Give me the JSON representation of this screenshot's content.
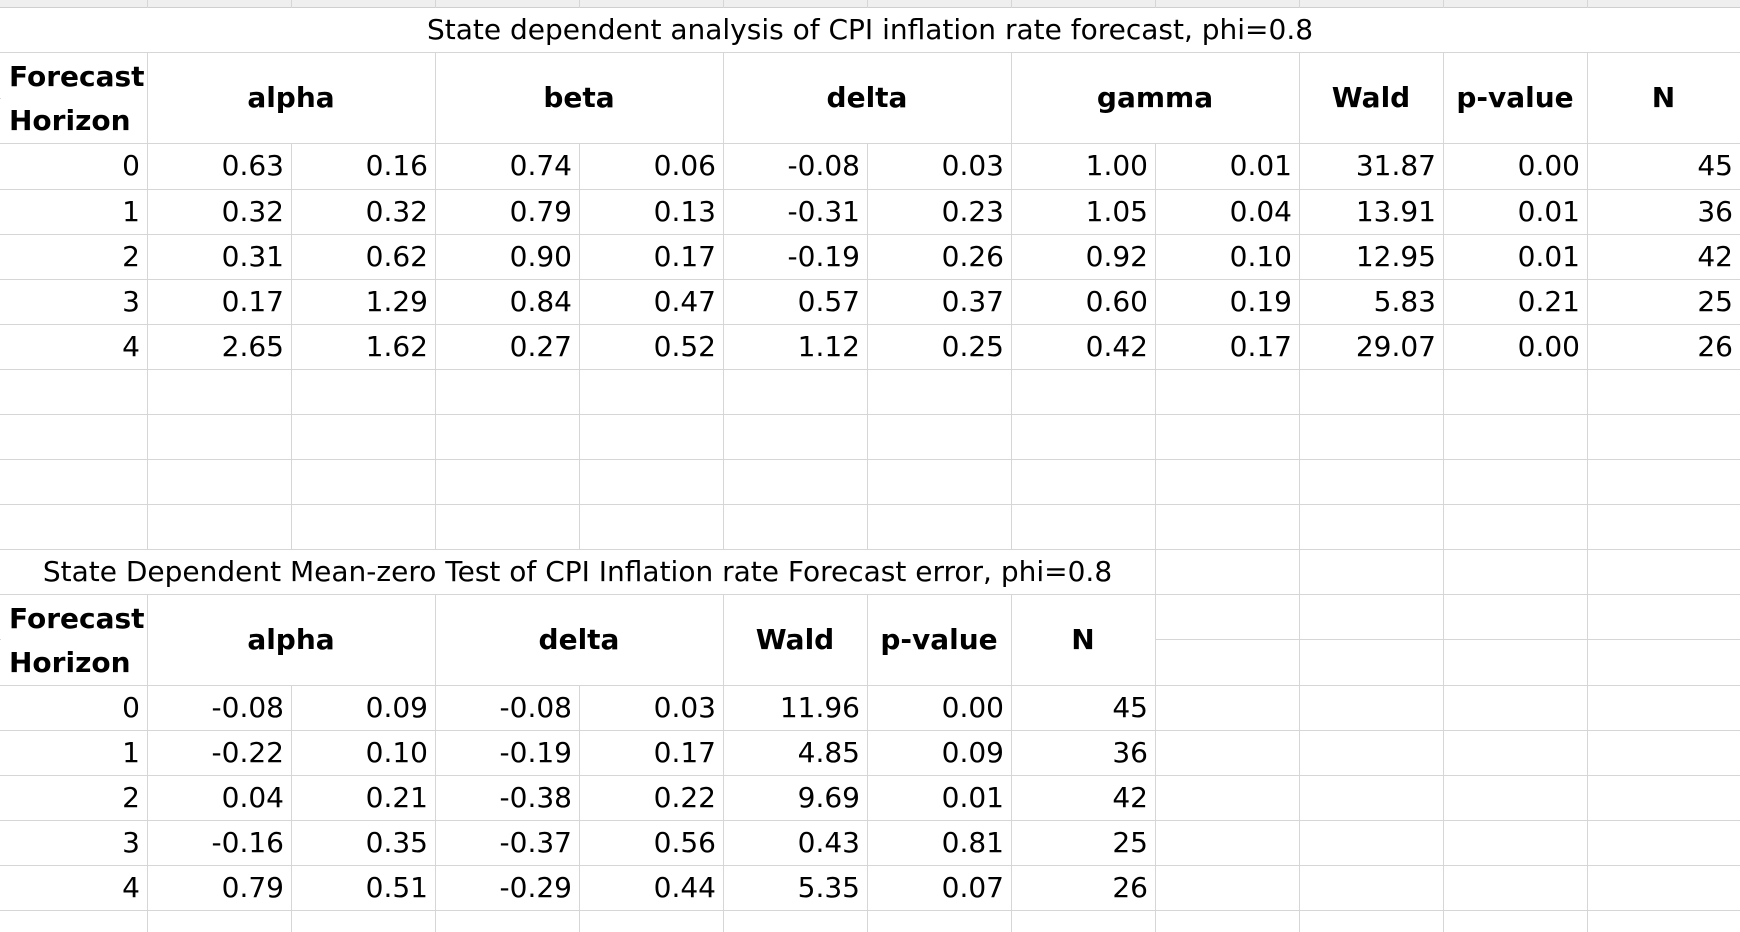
{
  "tables": [
    {
      "title": "State dependent analysis of CPI inflation rate forecast, phi=0.8",
      "header_row1": "Forecast",
      "header_row2": "Horizon",
      "columns": [
        "alpha",
        "beta",
        "delta",
        "gamma",
        "Wald",
        "p-value",
        "N"
      ],
      "rows": [
        [
          "0",
          "0.63",
          "0.16",
          "0.74",
          "0.06",
          "-0.08",
          "0.03",
          "1.00",
          "0.01",
          "31.87",
          "0.00",
          "45"
        ],
        [
          "1",
          "0.32",
          "0.32",
          "0.79",
          "0.13",
          "-0.31",
          "0.23",
          "1.05",
          "0.04",
          "13.91",
          "0.01",
          "36"
        ],
        [
          "2",
          "0.31",
          "0.62",
          "0.90",
          "0.17",
          "-0.19",
          "0.26",
          "0.92",
          "0.10",
          "12.95",
          "0.01",
          "42"
        ],
        [
          "3",
          "0.17",
          "1.29",
          "0.84",
          "0.47",
          "0.57",
          "0.37",
          "0.60",
          "0.19",
          "5.83",
          "0.21",
          "25"
        ],
        [
          "4",
          "2.65",
          "1.62",
          "0.27",
          "0.52",
          "1.12",
          "0.25",
          "0.42",
          "0.17",
          "29.07",
          "0.00",
          "26"
        ]
      ]
    },
    {
      "title": "State Dependent Mean-zero Test of CPI Inflation rate Forecast error, phi=0.8",
      "header_row1": "Forecast",
      "header_row2": "Horizon",
      "columns": [
        "alpha",
        "delta",
        "Wald",
        "p-value",
        "N"
      ],
      "rows": [
        [
          "0",
          "-0.08",
          "0.09",
          "-0.08",
          "0.03",
          "11.96",
          "0.00",
          "45"
        ],
        [
          "1",
          "-0.22",
          "0.10",
          "-0.19",
          "0.17",
          "4.85",
          "0.09",
          "36"
        ],
        [
          "2",
          "0.04",
          "0.21",
          "-0.38",
          "0.22",
          "9.69",
          "0.01",
          "42"
        ],
        [
          "3",
          "-0.16",
          "0.35",
          "-0.37",
          "0.56",
          "0.43",
          "0.81",
          "25"
        ],
        [
          "4",
          "0.79",
          "0.51",
          "-0.29",
          "0.44",
          "5.35",
          "0.07",
          "26"
        ]
      ]
    }
  ]
}
